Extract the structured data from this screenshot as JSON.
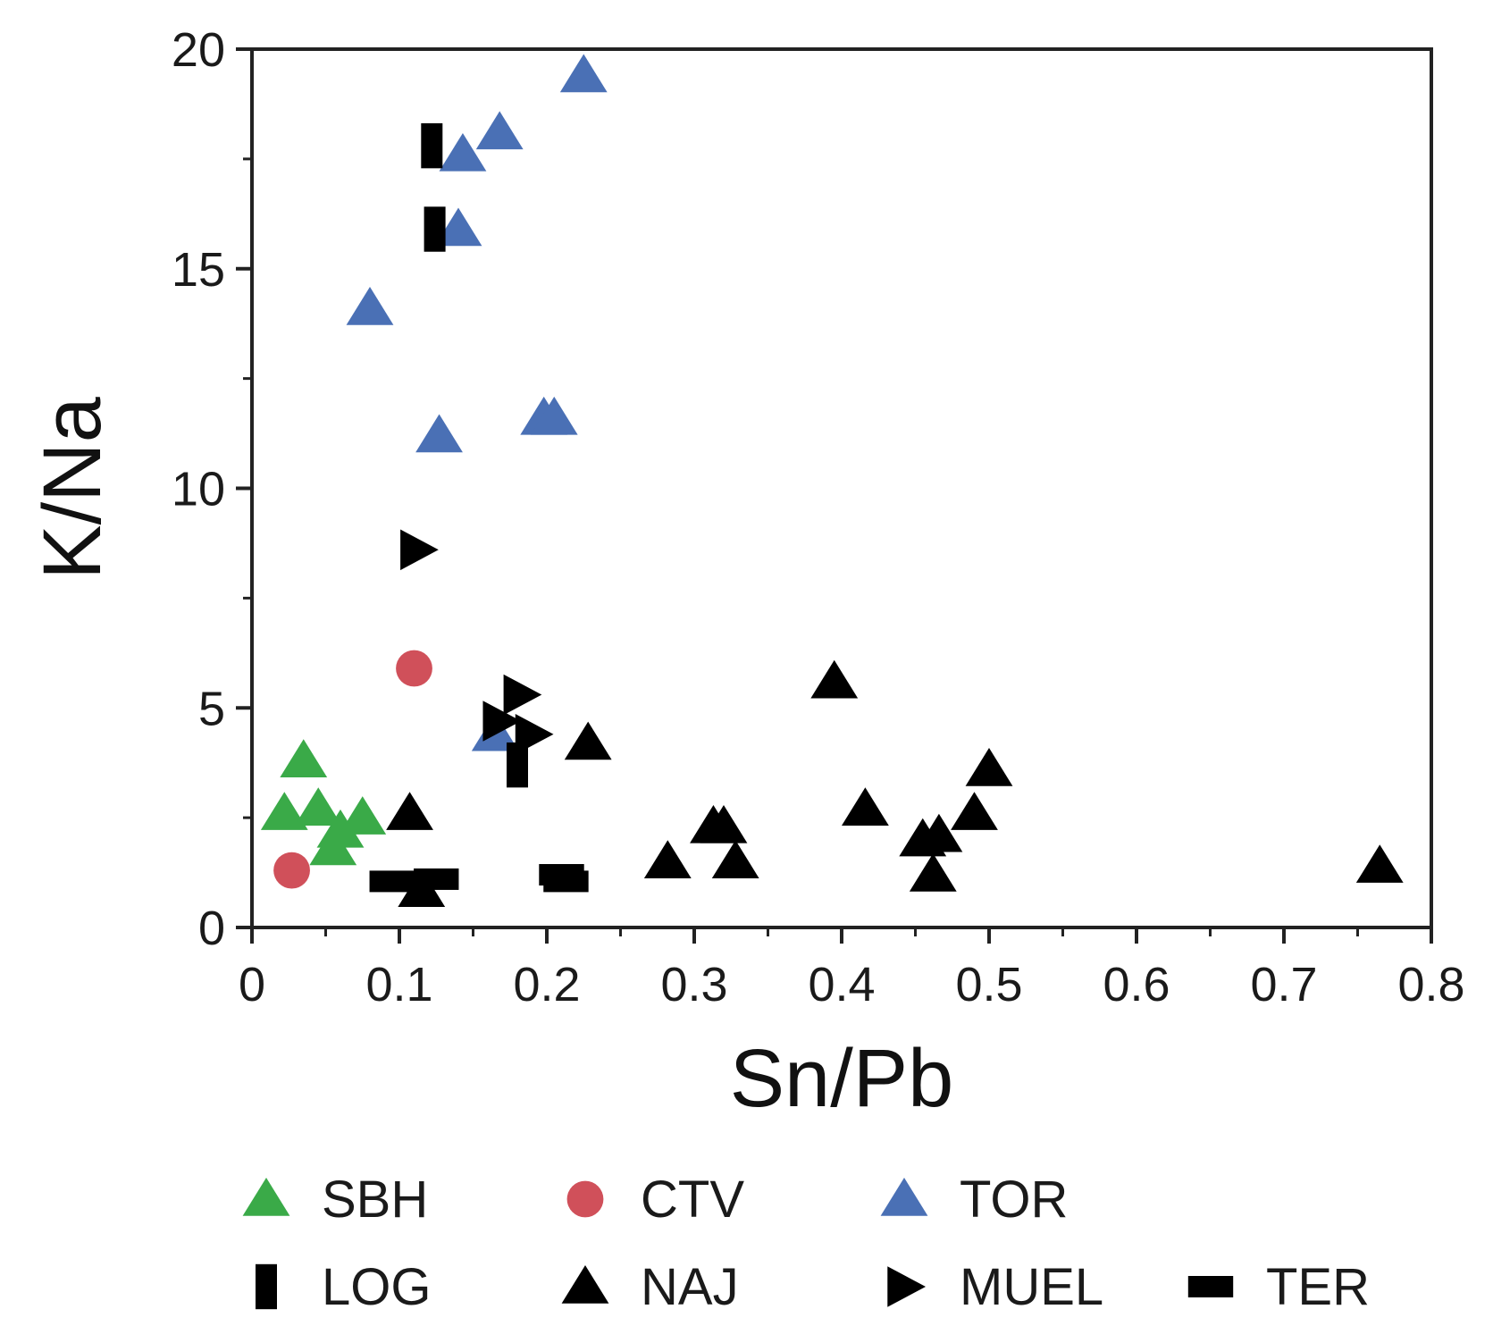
{
  "chart_data": {
    "type": "scatter",
    "title": "",
    "xlabel": "Sn/Pb",
    "ylabel": "K/Na",
    "xlim": [
      0,
      0.8
    ],
    "ylim": [
      0,
      20
    ],
    "xticks": [
      0,
      0.1,
      0.2,
      0.3,
      0.4,
      0.5,
      0.6,
      0.7,
      0.8
    ],
    "xtick_labels": [
      "0",
      "0.1",
      "0.2",
      "0.3",
      "0.4",
      "0.5",
      "0.6",
      "0.7",
      "0.8"
    ],
    "yticks": [
      0,
      5,
      10,
      15,
      20
    ],
    "ytick_labels": [
      "0",
      "5",
      "10",
      "15",
      "20"
    ],
    "yminor": [
      2.5,
      7.5,
      12.5,
      17.5
    ],
    "grid": false,
    "legend_position": "bottom",
    "series": [
      {
        "name": "SBH",
        "marker": "triangle-up",
        "color": "#3aaa48",
        "points": [
          [
            0.022,
            2.6
          ],
          [
            0.035,
            3.8
          ],
          [
            0.045,
            2.7
          ],
          [
            0.055,
            1.8
          ],
          [
            0.06,
            2.2
          ],
          [
            0.075,
            2.5
          ]
        ]
      },
      {
        "name": "CTV",
        "marker": "circle",
        "color": "#d0505a",
        "points": [
          [
            0.027,
            1.3
          ],
          [
            0.11,
            5.9
          ]
        ]
      },
      {
        "name": "TOR",
        "marker": "triangle-up",
        "color": "#4a70b5",
        "points": [
          [
            0.08,
            14.1
          ],
          [
            0.127,
            11.2
          ],
          [
            0.14,
            15.9
          ],
          [
            0.143,
            17.6
          ],
          [
            0.168,
            18.1
          ],
          [
            0.165,
            4.4
          ],
          [
            0.198,
            11.6
          ],
          [
            0.205,
            11.6
          ],
          [
            0.225,
            19.4
          ]
        ]
      },
      {
        "name": "LOG",
        "marker": "rect-tall",
        "color": "#000000",
        "points": [
          [
            0.122,
            17.8
          ],
          [
            0.124,
            15.9
          ],
          [
            0.18,
            3.7
          ]
        ]
      },
      {
        "name": "NAJ",
        "marker": "triangle-up",
        "color": "#000000",
        "points": [
          [
            0.107,
            2.6
          ],
          [
            0.115,
            0.85
          ],
          [
            0.228,
            4.2
          ],
          [
            0.282,
            1.5
          ],
          [
            0.313,
            2.3
          ],
          [
            0.32,
            2.3
          ],
          [
            0.328,
            1.5
          ],
          [
            0.395,
            5.6
          ],
          [
            0.416,
            2.7
          ],
          [
            0.455,
            2.0
          ],
          [
            0.462,
            1.2
          ],
          [
            0.466,
            2.1
          ],
          [
            0.49,
            2.6
          ],
          [
            0.5,
            3.6
          ],
          [
            0.765,
            1.4
          ]
        ]
      },
      {
        "name": "MUEL",
        "marker": "triangle-right",
        "color": "#000000",
        "points": [
          [
            0.112,
            8.6
          ],
          [
            0.168,
            4.7
          ],
          [
            0.182,
            5.3
          ],
          [
            0.19,
            4.4
          ]
        ]
      },
      {
        "name": "TER",
        "marker": "rect-wide",
        "color": "#000000",
        "points": [
          [
            0.095,
            1.05
          ],
          [
            0.125,
            1.1
          ],
          [
            0.21,
            1.2
          ],
          [
            0.213,
            1.05
          ]
        ]
      }
    ],
    "legend": {
      "rows": [
        [
          "SBH",
          "CTV",
          "TOR"
        ],
        [
          "LOG",
          "NAJ",
          "MUEL",
          "TER"
        ]
      ]
    }
  }
}
